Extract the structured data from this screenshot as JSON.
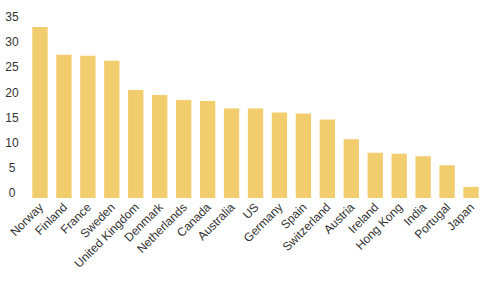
{
  "chart_data": {
    "type": "bar",
    "categories": [
      "Norway",
      "Finland",
      "France",
      "Sweden",
      "United Kingdom",
      "Denmark",
      "Netherlands",
      "Canada",
      "Australia",
      "US",
      "Germany",
      "Spain",
      "Switzerland",
      "Austria",
      "Ireland",
      "Hong Kong",
      "India",
      "Portugal",
      "Japan"
    ],
    "values": [
      34,
      28.5,
      28.3,
      27.3,
      21.5,
      20.5,
      19.5,
      19.3,
      17.8,
      17.8,
      17,
      16.8,
      15.6,
      11.7,
      9,
      8.8,
      8.3,
      6.5,
      2.2
    ],
    "color": "#f2cd6e",
    "ylim": [
      0,
      35
    ],
    "yticks": [
      0,
      5,
      10,
      15,
      20,
      25,
      30,
      35
    ],
    "grid": false
  }
}
